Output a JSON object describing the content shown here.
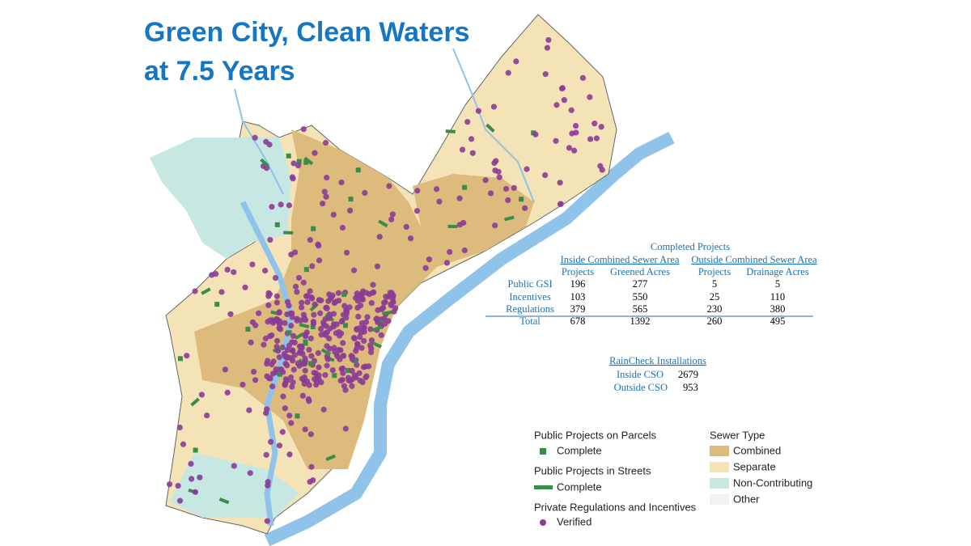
{
  "title": [
    "Green City, Clean Waters",
    "at 7.5 Years"
  ],
  "completed_projects": {
    "title": "Completed Projects",
    "groups": [
      "Inside Combined Sewer Area",
      "Outside Combined Sewer Area"
    ],
    "columns": [
      "Projects",
      "Greened Acres",
      "Projects",
      "Drainage Acres"
    ],
    "rows": [
      {
        "label": "Public GSI",
        "values": [
          196,
          277,
          5,
          5
        ]
      },
      {
        "label": "Incentives",
        "values": [
          103,
          550,
          25,
          110
        ]
      },
      {
        "label": "Regulations",
        "values": [
          379,
          565,
          230,
          380
        ]
      },
      {
        "label": "Total",
        "values": [
          678,
          1392,
          260,
          495
        ]
      }
    ]
  },
  "raincheck": {
    "title": "RainCheck Installations",
    "rows": [
      {
        "label": "Inside CSO",
        "value": 2679
      },
      {
        "label": "Outside CSO",
        "value": 953
      }
    ]
  },
  "legend": {
    "public_parcels": {
      "title": "Public Projects on Parcels",
      "item": "Complete"
    },
    "public_streets": {
      "title": "Public Projects in Streets",
      "item": "Complete"
    },
    "private": {
      "title": "Private Regulations and Incentives",
      "item": "Verified"
    },
    "sewer_type": {
      "title": "Sewer Type",
      "items": [
        "Combined",
        "Separate",
        "Non-Contributing",
        "Other"
      ]
    }
  }
}
